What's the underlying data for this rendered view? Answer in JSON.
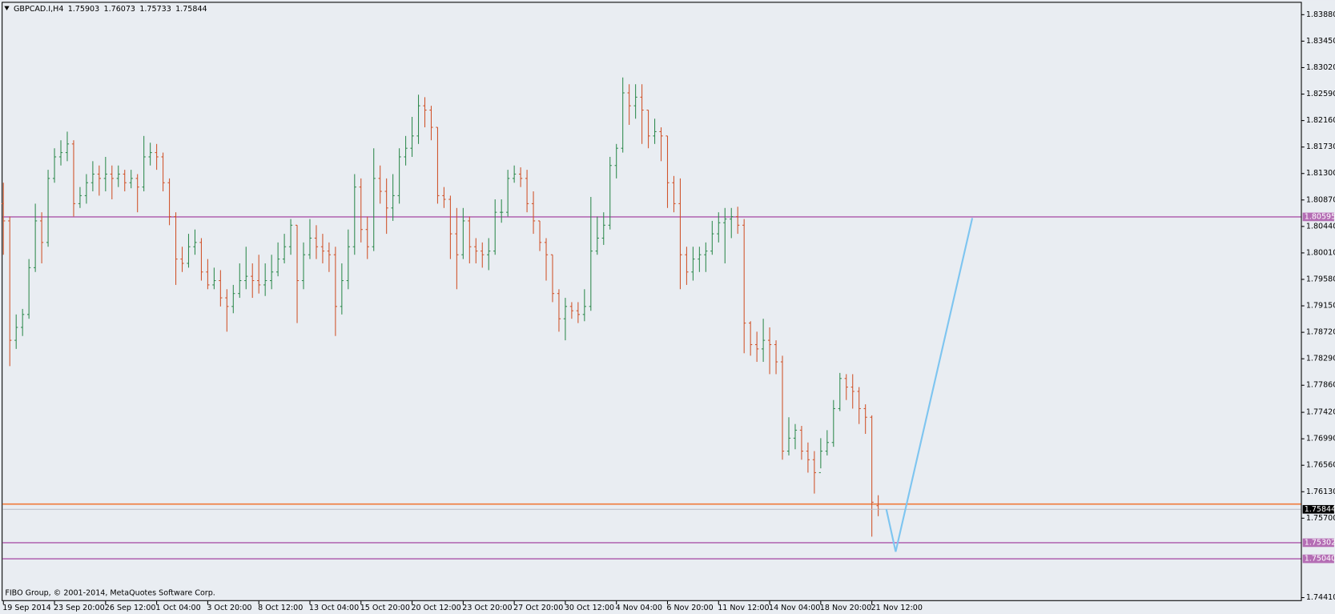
{
  "chart_data": {
    "type": "ohlc",
    "symbol": "GBPCAD.I,H4",
    "footer": "FIBO Group, © 2001-2014, MetaQuotes Software Corp.",
    "up_color": "#2f8a4e",
    "down_color": "#d0532a",
    "ylim": [
      1.74368,
      1.84074
    ],
    "yticks": [
      {
        "value": 1.8388,
        "label": "1.83880"
      },
      {
        "value": 1.8345,
        "label": "1.83450"
      },
      {
        "value": 1.8302,
        "label": "1.83020"
      },
      {
        "value": 1.8259,
        "label": "1.82590"
      },
      {
        "value": 1.8216,
        "label": "1.82160"
      },
      {
        "value": 1.8173,
        "label": "1.81730"
      },
      {
        "value": 1.813,
        "label": "1.81300"
      },
      {
        "value": 1.8087,
        "label": "1.80870"
      },
      {
        "value": 1.8044,
        "label": "1.80440"
      },
      {
        "value": 1.8001,
        "label": "1.80010"
      },
      {
        "value": 1.7958,
        "label": "1.79580"
      },
      {
        "value": 1.7915,
        "label": "1.79150"
      },
      {
        "value": 1.7872,
        "label": "1.78720"
      },
      {
        "value": 1.7829,
        "label": "1.78290"
      },
      {
        "value": 1.7786,
        "label": "1.77860"
      },
      {
        "value": 1.7742,
        "label": "1.77420"
      },
      {
        "value": 1.7699,
        "label": "1.76990"
      },
      {
        "value": 1.7656,
        "label": "1.76560"
      },
      {
        "value": 1.7613,
        "label": "1.76130"
      },
      {
        "value": 1.757,
        "label": "1.75700"
      },
      {
        "value": 1.7441,
        "label": "1.74410"
      }
    ],
    "levels": [
      {
        "value": 1.80595,
        "label": "1.80595",
        "color": "#b46db4"
      },
      {
        "value": 1.7593,
        "color": "#f07a3a"
      },
      {
        "value": 1.75302,
        "label": "1.75302",
        "color": "#b46db4"
      },
      {
        "value": 1.7504,
        "label": "1.75040",
        "color": "#b46db4"
      }
    ],
    "categories": [
      "19 Sep 2014",
      null,
      null,
      null,
      null,
      null,
      null,
      null,
      "23 Sep 20:00",
      null,
      null,
      null,
      null,
      null,
      null,
      null,
      "26 Sep 12:00",
      null,
      null,
      null,
      null,
      null,
      null,
      null,
      "1 Oct 04:00",
      null,
      null,
      null,
      null,
      null,
      null,
      null,
      "3 Oct 20:00",
      null,
      null,
      null,
      null,
      null,
      null,
      null,
      "8 Oct 12:00",
      null,
      null,
      null,
      null,
      null,
      null,
      null,
      "13 Oct 04:00",
      null,
      null,
      null,
      null,
      null,
      null,
      null,
      "15 Oct 20:00",
      null,
      null,
      null,
      null,
      null,
      null,
      null,
      "20 Oct 12:00",
      null,
      null,
      null,
      null,
      null,
      null,
      null,
      "23 Oct 20:00",
      null,
      null,
      null,
      null,
      null,
      null,
      null,
      "27 Oct 20:00",
      null,
      null,
      null,
      null,
      null,
      null,
      null,
      "30 Oct 12:00",
      null,
      null,
      null,
      null,
      null,
      null,
      null,
      "4 Nov 04:00",
      null,
      null,
      null,
      null,
      null,
      null,
      null,
      "6 Nov 20:00",
      null,
      null,
      null,
      null,
      null,
      null,
      null,
      "11 Nov 12:00",
      null,
      null,
      null,
      null,
      null,
      null,
      null,
      "14 Nov 04:00",
      null,
      null,
      null,
      null,
      null,
      null,
      null,
      "18 Nov 20:00",
      null,
      null,
      null,
      null,
      null,
      null,
      null,
      "21 Nov 12:00",
      null
    ],
    "bars": [
      [
        1.8081,
        1.8115,
        1.7998,
        1.8053
      ],
      [
        1.8053,
        1.806,
        1.7817,
        1.7859
      ],
      [
        1.7859,
        1.7901,
        1.7845,
        1.788
      ],
      [
        1.788,
        1.791,
        1.7866,
        1.7901
      ],
      [
        1.7901,
        1.7991,
        1.7894,
        1.7977
      ],
      [
        1.7977,
        1.8081,
        1.797,
        1.8053
      ],
      [
        1.8053,
        1.8067,
        1.7984,
        1.8018
      ],
      [
        1.8018,
        1.8136,
        1.8011,
        1.8122
      ],
      [
        1.8122,
        1.8171,
        1.8115,
        1.8157
      ],
      [
        1.8157,
        1.8184,
        1.8143,
        1.8164
      ],
      [
        1.8164,
        1.8198,
        1.815,
        1.8178
      ],
      [
        1.8178,
        1.8184,
        1.806,
        1.8081
      ],
      [
        1.8081,
        1.8108,
        1.8074,
        1.8094
      ],
      [
        1.8094,
        1.8129,
        1.8081,
        1.8115
      ],
      [
        1.8115,
        1.815,
        1.8101,
        1.8129
      ],
      [
        1.8129,
        1.8143,
        1.8094,
        1.8122
      ],
      [
        1.8122,
        1.8157,
        1.8101,
        1.8129
      ],
      [
        1.8129,
        1.8143,
        1.8088,
        1.8122
      ],
      [
        1.8122,
        1.8143,
        1.8108,
        1.8129
      ],
      [
        1.8129,
        1.8136,
        1.8101,
        1.8115
      ],
      [
        1.8115,
        1.8136,
        1.8106,
        1.8122
      ],
      [
        1.8122,
        1.8129,
        1.8067,
        1.8108
      ],
      [
        1.8108,
        1.8191,
        1.8101,
        1.8157
      ],
      [
        1.8157,
        1.818,
        1.8143,
        1.8164
      ],
      [
        1.8164,
        1.8178,
        1.8136,
        1.8157
      ],
      [
        1.8157,
        1.8164,
        1.8101,
        1.8115
      ],
      [
        1.8115,
        1.8122,
        1.8046,
        1.806
      ],
      [
        1.806,
        1.8067,
        1.7949,
        1.7991
      ],
      [
        1.7991,
        1.8011,
        1.797,
        1.7984
      ],
      [
        1.7984,
        1.8032,
        1.7977,
        1.8011
      ],
      [
        1.8011,
        1.8039,
        1.7998,
        1.8018
      ],
      [
        1.8018,
        1.8025,
        1.7956,
        1.797
      ],
      [
        1.797,
        1.7991,
        1.7942,
        1.7949
      ],
      [
        1.7949,
        1.7977,
        1.7942,
        1.7956
      ],
      [
        1.7956,
        1.7973,
        1.7914,
        1.7928
      ],
      [
        1.7928,
        1.7942,
        1.7873,
        1.7914
      ],
      [
        1.7914,
        1.7949,
        1.7903,
        1.7935
      ],
      [
        1.7935,
        1.7984,
        1.7928,
        1.7956
      ],
      [
        1.7956,
        1.8011,
        1.7942,
        1.7963
      ],
      [
        1.7963,
        1.7984,
        1.7928,
        1.7956
      ],
      [
        1.7956,
        1.7998,
        1.7935,
        1.7949
      ],
      [
        1.7949,
        1.7984,
        1.7931,
        1.7956
      ],
      [
        1.7956,
        1.7998,
        1.7942,
        1.797
      ],
      [
        1.797,
        1.8018,
        1.7963,
        1.7991
      ],
      [
        1.7991,
        1.8032,
        1.7984,
        1.8011
      ],
      [
        1.8011,
        1.8056,
        1.7998,
        1.8046
      ],
      [
        1.8046,
        1.8046,
        1.7887,
        1.7956
      ],
      [
        1.7956,
        1.8018,
        1.7942,
        1.7998
      ],
      [
        1.7998,
        1.8056,
        1.7991,
        1.8025
      ],
      [
        1.8025,
        1.8046,
        1.7991,
        1.8011
      ],
      [
        1.8011,
        1.8032,
        1.7984,
        1.8004
      ],
      [
        1.8004,
        1.8018,
        1.797,
        1.7998
      ],
      [
        1.7998,
        1.8011,
        1.7866,
        1.7914
      ],
      [
        1.7914,
        1.7984,
        1.7901,
        1.7956
      ],
      [
        1.7956,
        1.8039,
        1.7942,
        1.8011
      ],
      [
        1.8011,
        1.8129,
        1.7998,
        1.8108
      ],
      [
        1.8108,
        1.8122,
        1.8018,
        1.8039
      ],
      [
        1.8039,
        1.806,
        1.7991,
        1.8011
      ],
      [
        1.8011,
        1.8171,
        1.8004,
        1.8122
      ],
      [
        1.8122,
        1.8143,
        1.8081,
        1.8101
      ],
      [
        1.8101,
        1.8122,
        1.8032,
        1.8074
      ],
      [
        1.8074,
        1.8129,
        1.8053,
        1.8094
      ],
      [
        1.8094,
        1.8171,
        1.8081,
        1.8157
      ],
      [
        1.8157,
        1.8191,
        1.8143,
        1.8171
      ],
      [
        1.8171,
        1.8222,
        1.8157,
        1.8191
      ],
      [
        1.8191,
        1.8258,
        1.8178,
        1.824
      ],
      [
        1.824,
        1.8254,
        1.8205,
        1.8233
      ],
      [
        1.8233,
        1.824,
        1.8184,
        1.8205
      ],
      [
        1.8205,
        1.8205,
        1.8081,
        1.8094
      ],
      [
        1.8094,
        1.8108,
        1.8074,
        1.8088
      ],
      [
        1.8088,
        1.8094,
        1.7991,
        1.8032
      ],
      [
        1.8032,
        1.8074,
        1.7942,
        1.7998
      ],
      [
        1.7998,
        1.8074,
        1.7991,
        1.8053
      ],
      [
        1.8053,
        1.806,
        1.7984,
        1.8011
      ],
      [
        1.8011,
        1.8025,
        1.7984,
        1.8004
      ],
      [
        1.8004,
        1.8018,
        1.7977,
        1.7998
      ],
      [
        1.7998,
        1.8025,
        1.7973,
        1.8004
      ],
      [
        1.8004,
        1.8088,
        1.7998,
        1.8067
      ],
      [
        1.8067,
        1.8088,
        1.805,
        1.8067
      ],
      [
        1.8067,
        1.8136,
        1.806,
        1.8122
      ],
      [
        1.8122,
        1.8143,
        1.8115,
        1.8129
      ],
      [
        1.8129,
        1.814,
        1.8108,
        1.8122
      ],
      [
        1.8122,
        1.8136,
        1.8067,
        1.8081
      ],
      [
        1.8081,
        1.8101,
        1.8032,
        1.8053
      ],
      [
        1.8053,
        1.8053,
        1.8004,
        1.8018
      ],
      [
        1.8018,
        1.8025,
        1.7956,
        1.7998
      ],
      [
        1.7998,
        1.7998,
        1.7921,
        1.7935
      ],
      [
        1.7935,
        1.7942,
        1.7873,
        1.7894
      ],
      [
        1.7894,
        1.7928,
        1.7859,
        1.7914
      ],
      [
        1.7914,
        1.7921,
        1.7894,
        1.7907
      ],
      [
        1.7907,
        1.7921,
        1.7887,
        1.7901
      ],
      [
        1.7901,
        1.7942,
        1.789,
        1.7914
      ],
      [
        1.7914,
        1.8092,
        1.7907,
        1.8004
      ],
      [
        1.8004,
        1.806,
        1.7998,
        1.8025
      ],
      [
        1.8025,
        1.8067,
        1.8014,
        1.8046
      ],
      [
        1.8046,
        1.8157,
        1.8039,
        1.8143
      ],
      [
        1.8143,
        1.8178,
        1.8122,
        1.8171
      ],
      [
        1.8171,
        1.8286,
        1.8164,
        1.8261
      ],
      [
        1.8261,
        1.8275,
        1.8209,
        1.824
      ],
      [
        1.824,
        1.8275,
        1.8219,
        1.8254
      ],
      [
        1.8254,
        1.8275,
        1.8178,
        1.8233
      ],
      [
        1.8233,
        1.8233,
        1.8171,
        1.8191
      ],
      [
        1.8191,
        1.8219,
        1.8178,
        1.8198
      ],
      [
        1.8198,
        1.8205,
        1.815,
        1.8191
      ],
      [
        1.8191,
        1.8191,
        1.8074,
        1.8115
      ],
      [
        1.8115,
        1.8126,
        1.8067,
        1.8081
      ],
      [
        1.8081,
        1.8122,
        1.7942,
        1.7998
      ],
      [
        1.7998,
        1.8011,
        1.7949,
        1.797
      ],
      [
        1.797,
        1.8011,
        1.7956,
        1.7991
      ],
      [
        1.7991,
        1.8011,
        1.797,
        1.7998
      ],
      [
        1.7998,
        1.8018,
        1.797,
        1.8004
      ],
      [
        1.8004,
        1.8053,
        1.7998,
        1.8032
      ],
      [
        1.8032,
        1.8067,
        1.8018,
        1.805
      ],
      [
        1.805,
        1.8074,
        1.7984,
        1.8056
      ],
      [
        1.8056,
        1.8074,
        1.8025,
        1.806
      ],
      [
        1.806,
        1.8076,
        1.8032,
        1.8046
      ],
      [
        1.8046,
        1.8056,
        1.7838,
        1.7887
      ],
      [
        1.7887,
        1.789,
        1.7834,
        1.7852
      ],
      [
        1.7852,
        1.7873,
        1.7824,
        1.7845
      ],
      [
        1.7845,
        1.7894,
        1.7824,
        1.7859
      ],
      [
        1.7859,
        1.788,
        1.7804,
        1.7852
      ],
      [
        1.7852,
        1.7859,
        1.7804,
        1.7824
      ],
      [
        1.7824,
        1.7834,
        1.7665,
        1.7679
      ],
      [
        1.7679,
        1.7734,
        1.7672,
        1.77
      ],
      [
        1.77,
        1.7723,
        1.7682,
        1.7713
      ],
      [
        1.7713,
        1.772,
        1.7665,
        1.7679
      ],
      [
        1.7679,
        1.7693,
        1.7644,
        1.7665
      ],
      [
        1.7665,
        1.7679,
        1.761,
        1.7644
      ],
      [
        1.7644,
        1.77,
        1.7651,
        1.7679
      ],
      [
        1.7679,
        1.7713,
        1.7672,
        1.7693
      ],
      [
        1.7693,
        1.7762,
        1.7686,
        1.7748
      ],
      [
        1.7748,
        1.7806,
        1.7744,
        1.7797
      ],
      [
        1.7797,
        1.7804,
        1.7762,
        1.7783
      ],
      [
        1.7783,
        1.7804,
        1.7748,
        1.7776
      ],
      [
        1.7776,
        1.7783,
        1.7723,
        1.7748
      ],
      [
        1.7748,
        1.7755,
        1.7707,
        1.7734
      ],
      [
        1.7734,
        1.7737,
        1.754,
        1.7596
      ],
      [
        1.75903,
        1.76073,
        1.75733,
        1.75844
      ]
    ]
  }
}
